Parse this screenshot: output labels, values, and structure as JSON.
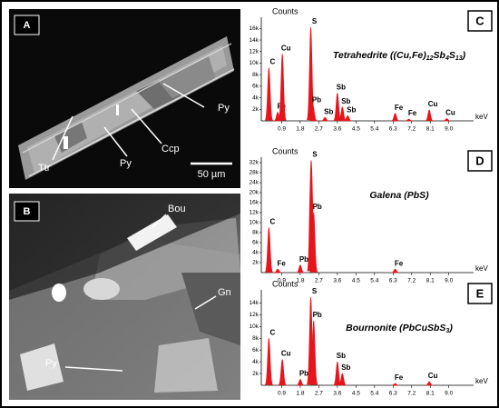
{
  "panels": {
    "a": {
      "label": "A",
      "annotations": [
        "Py",
        "Ccp",
        "Py",
        "Ttr"
      ],
      "scale_bar": "50 µm"
    },
    "b": {
      "label": "B",
      "annotations": [
        "Bou",
        "Gn",
        "Py"
      ]
    }
  },
  "chart_data": [
    {
      "type": "spectrum",
      "panel": "C",
      "title": "Tetrahedrite ((Cu,Fe)12Sb4S13)",
      "ylabel": "Counts",
      "xlabel": "keV",
      "color": "#e8141b",
      "xlim": [
        0,
        10.2
      ],
      "ylim": [
        0,
        17000
      ],
      "xticks": [
        0.9,
        1.8,
        2.7,
        3.6,
        4.5,
        5.4,
        6.3,
        7.2,
        8.1,
        {
          "value": 9,
          "label": "9.0"
        }
      ],
      "yticks": [
        {
          "value": 2000,
          "label": "2k"
        },
        {
          "value": 4000,
          "label": "4k"
        },
        {
          "value": 6000,
          "label": "6k"
        },
        {
          "value": 8000,
          "label": "8k"
        },
        {
          "value": 10000,
          "label": "10k"
        },
        {
          "value": 12000,
          "label": "12k"
        },
        {
          "value": 14000,
          "label": "14k"
        },
        {
          "value": 16000,
          "label": "16k"
        }
      ],
      "peaks": [
        {
          "label": "C",
          "x": 0.28,
          "value": 9200
        },
        {
          "label": "Fe",
          "x": 0.71,
          "value": 1500
        },
        {
          "label": "Cu",
          "x": 0.93,
          "value": 11600
        },
        {
          "label": "S",
          "x": 2.31,
          "value": 16200
        },
        {
          "label": "Pb",
          "x": 2.42,
          "value": 2600
        },
        {
          "label": "Sb",
          "x": 3.0,
          "value": 600
        },
        {
          "label": "Sb",
          "x": 3.6,
          "value": 4800
        },
        {
          "label": "Sb",
          "x": 3.84,
          "value": 2400
        },
        {
          "label": "Sb",
          "x": 4.1,
          "value": 900
        },
        {
          "label": "Fe",
          "x": 6.4,
          "value": 1300
        },
        {
          "label": "Fe",
          "x": 7.06,
          "value": 300
        },
        {
          "label": "Cu",
          "x": 8.05,
          "value": 1900
        },
        {
          "label": "Cu",
          "x": 8.9,
          "value": 400
        }
      ]
    },
    {
      "type": "spectrum",
      "panel": "D",
      "title": "Galena (PbS)",
      "ylabel": "Counts",
      "xlabel": "keV",
      "color": "#e8141b",
      "yscale": "even-ticks",
      "xlim": [
        0,
        10.2
      ],
      "ylim": [
        0,
        32000
      ],
      "xticks": [
        0.9,
        1.8,
        2.7,
        3.6,
        4.5,
        5.4,
        6.3,
        7.2,
        8.1,
        {
          "value": 9,
          "label": "9.0"
        }
      ],
      "yticks": [
        {
          "value": 2000,
          "label": "2k"
        },
        {
          "value": 4000,
          "label": "4k"
        },
        {
          "value": 6000,
          "label": "6k"
        },
        {
          "value": 8000,
          "label": "8k"
        },
        {
          "value": 10000,
          "label": "10k"
        },
        {
          "value": 12000,
          "label": "12k"
        },
        {
          "value": 16000,
          "label": "16k"
        },
        {
          "value": 20000,
          "label": "20k"
        },
        {
          "value": 24000,
          "label": "24k"
        },
        {
          "value": 28000,
          "label": "28k"
        },
        {
          "value": 32000,
          "label": "32k"
        }
      ],
      "peaks": [
        {
          "label": "C",
          "x": 0.28,
          "value": 9000
        },
        {
          "label": "Fe",
          "x": 0.71,
          "value": 700
        },
        {
          "label": "Pb",
          "x": 1.8,
          "value": 1500
        },
        {
          "label": "S",
          "x": 2.33,
          "value": 33000
        },
        {
          "label": "Pb",
          "x": 2.45,
          "value": 12000
        },
        {
          "label": "Fe",
          "x": 6.4,
          "value": 700
        }
      ]
    },
    {
      "type": "spectrum",
      "panel": "E",
      "title": "Bournonite (PbCuSbS3)",
      "ylabel": "Counts",
      "xlabel": "keV",
      "color": "#e8141b",
      "xlim": [
        0,
        10.2
      ],
      "ylim": [
        0,
        15300
      ],
      "xticks": [
        0.9,
        1.8,
        2.7,
        3.6,
        4.5,
        5.4,
        6.3,
        7.2,
        8.1,
        {
          "value": 9,
          "label": "9.0"
        }
      ],
      "yticks": [
        {
          "value": 2000,
          "label": "2k"
        },
        {
          "value": 4000,
          "label": "4k"
        },
        {
          "value": 6000,
          "label": "6k"
        },
        {
          "value": 8000,
          "label": "8k"
        },
        {
          "value": 10000,
          "label": "10k"
        },
        {
          "value": 12000,
          "label": "12k"
        },
        {
          "value": 14000,
          "label": "14k"
        }
      ],
      "peaks": [
        {
          "label": "C",
          "x": 0.28,
          "value": 8000
        },
        {
          "label": "Cu",
          "x": 0.93,
          "value": 4400
        },
        {
          "label": "Pb",
          "x": 1.8,
          "value": 1000
        },
        {
          "label": "S",
          "x": 2.31,
          "value": 15000
        },
        {
          "label": "Pb",
          "x": 2.45,
          "value": 11000
        },
        {
          "label": "Sb",
          "x": 3.6,
          "value": 4000
        },
        {
          "label": "Sb",
          "x": 3.84,
          "value": 2000
        },
        {
          "label": "Fe",
          "x": 6.4,
          "value": 300
        },
        {
          "label": "Cu",
          "x": 8.05,
          "value": 600
        }
      ]
    }
  ]
}
